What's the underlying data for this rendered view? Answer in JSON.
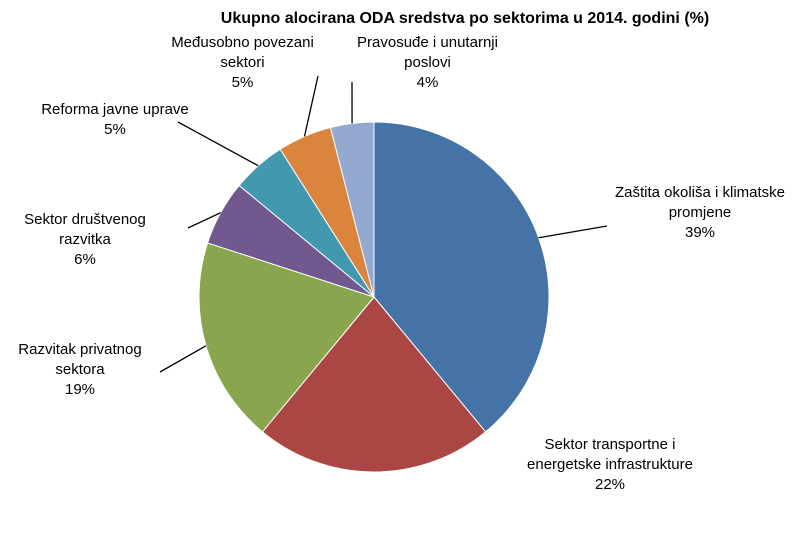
{
  "chart_data": {
    "type": "pie",
    "title": "Ukupno alocirana ODA sredstva po sektorima u 2014. godini (%)",
    "categories": [
      "Zaštita okoliša i klimatske promjene",
      "Sektor transportne i energetske infrastrukture",
      "Razvitak privatnog sektora",
      "Sektor društvenog razvitka",
      "Reforma javne uprave",
      "Međusobno povezani sektori",
      "Pravosuđe i unutarnji poslovi"
    ],
    "values": [
      39,
      22,
      19,
      6,
      5,
      5,
      4
    ],
    "value_labels": [
      "39%",
      "22%",
      "19%",
      "6%",
      "5%",
      "5%",
      "4%"
    ],
    "colors": [
      "#4572a7",
      "#aa4643",
      "#89a54e",
      "#71588f",
      "#4198af",
      "#db843d",
      "#93a9cf"
    ]
  }
}
